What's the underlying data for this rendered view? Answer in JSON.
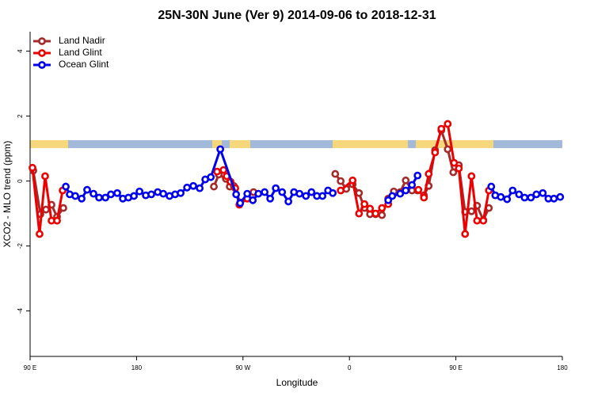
{
  "chart_data": {
    "type": "line",
    "title": "25N-30N June (Ver 9)   2014-09-06 to 2018-12-31",
    "x_label": "Longitude",
    "y_label": "XCO2 - MLO trend (ppm)",
    "xlim": [
      90,
      540
    ],
    "xticks": [
      {
        "value": 90,
        "label": "90 E"
      },
      180,
      {
        "value": 270,
        "label": "90 W"
      },
      {
        "value": 360,
        "label": "0"
      },
      {
        "value": 450,
        "label": "90 E"
      },
      {
        "value": 540,
        "label": "180"
      }
    ],
    "ylim": [
      -5.4,
      4.6
    ],
    "yticks": [
      -4,
      -2,
      0,
      2,
      4
    ],
    "legend": "top-left",
    "series": [
      {
        "name": "Land Nadir",
        "color": "#a52a2a",
        "x": [
          92.7,
          98.7,
          103.4,
          108.1,
          112.8,
          118.1,
          null,
          245.4,
          249.5,
          255.5,
          258.8,
          262.2,
          267.6,
          278.9,
          null,
          348.0,
          352.6,
          357.3,
          362.7,
          368.1,
          372.7,
          377.4,
          382.1,
          387.5,
          392.8,
          397.5,
          402.9,
          407.6,
          412.9,
          417.6,
          423.0,
          427.0,
          432.4,
          437.7,
          443.1,
          447.8,
          452.5,
          457.8,
          463.2,
          467.9,
          473.2,
          477.9
        ],
        "values": [
          0.32,
          -1.02,
          -0.88,
          -0.73,
          -1.1,
          -0.83,
          null,
          -0.17,
          0.2,
          0.07,
          -0.17,
          -0.15,
          -0.66,
          -0.34,
          null,
          0.22,
          0.0,
          -0.24,
          -0.1,
          -0.37,
          -0.83,
          -1.02,
          -1.02,
          -1.05,
          -0.54,
          -0.32,
          -0.34,
          0.02,
          -0.29,
          -0.29,
          -0.44,
          -0.15,
          0.95,
          1.56,
          0.98,
          0.27,
          0.49,
          -0.95,
          -0.93,
          -0.76,
          -1.2,
          -0.83
        ]
      },
      {
        "name": "Land Glint",
        "color": "#ee0000",
        "x": [
          92.0,
          98.0,
          102.7,
          108.1,
          112.8,
          117.5,
          null,
          248.1,
          253.5,
          256.2,
          259.5,
          263.5,
          266.9,
          273.6,
          null,
          352.6,
          362.7,
          368.1,
          372.7,
          377.4,
          382.1,
          387.5,
          392.8,
          null,
          418.3,
          423.0,
          427.0,
          432.4,
          437.7,
          443.1,
          448.5,
          452.5,
          457.8,
          463.2,
          467.9,
          473.2,
          477.9
        ],
        "values": [
          0.41,
          -1.63,
          0.15,
          -1.22,
          -1.22,
          -0.29,
          null,
          0.29,
          0.34,
          0.15,
          -0.02,
          -0.22,
          -0.73,
          -0.54,
          null,
          -0.29,
          0.02,
          -1.0,
          -0.71,
          -0.85,
          -1.0,
          -0.83,
          -0.71,
          null,
          -0.27,
          -0.51,
          0.22,
          0.88,
          1.61,
          1.76,
          0.56,
          0.39,
          -1.63,
          0.15,
          -1.22,
          -1.22,
          -0.29
        ]
      },
      {
        "name": "Ocean Glint",
        "color": "#0000ee",
        "x": [
          120.2,
          123.5,
          128.2,
          133.6,
          138.2,
          143.6,
          148.3,
          153.7,
          158.3,
          163.7,
          168.4,
          173.1,
          177.8,
          182.5,
          187.8,
          192.5,
          197.9,
          202.6,
          207.9,
          212.6,
          217.3,
          222.7,
          228.0,
          233.4,
          238.1,
          242.8,
          250.8,
          264.2,
          267.6,
          273.6,
          278.3,
          283.0,
          288.3,
          293.0,
          297.7,
          303.1,
          308.4,
          313.1,
          317.8,
          323.2,
          327.9,
          332.5,
          337.2,
          341.9,
          345.9,
          null,
          392.8,
          396.2,
          402.9,
          407.6,
          412.9,
          417.6,
          null,
          479.9,
          483.3,
          488.0,
          493.3,
          498.0,
          503.4,
          508.1,
          513.4,
          518.1,
          523.5,
          528.2,
          532.9,
          538.2
        ],
        "values": [
          -0.17,
          -0.41,
          -0.46,
          -0.54,
          -0.27,
          -0.39,
          -0.51,
          -0.51,
          -0.41,
          -0.37,
          -0.54,
          -0.51,
          -0.46,
          -0.32,
          -0.44,
          -0.41,
          -0.34,
          -0.39,
          -0.46,
          -0.41,
          -0.37,
          -0.2,
          -0.15,
          -0.22,
          0.05,
          0.12,
          0.98,
          -0.41,
          -0.68,
          -0.39,
          -0.59,
          -0.39,
          -0.34,
          -0.54,
          -0.22,
          -0.34,
          -0.63,
          -0.34,
          -0.39,
          -0.46,
          -0.34,
          -0.46,
          -0.46,
          -0.29,
          -0.37,
          null,
          -0.59,
          -0.46,
          -0.39,
          -0.29,
          -0.12,
          0.17,
          null,
          -0.17,
          -0.44,
          -0.49,
          -0.56,
          -0.29,
          -0.41,
          -0.51,
          -0.51,
          -0.41,
          -0.37,
          -0.54,
          -0.54,
          -0.49
        ]
      }
    ]
  }
}
